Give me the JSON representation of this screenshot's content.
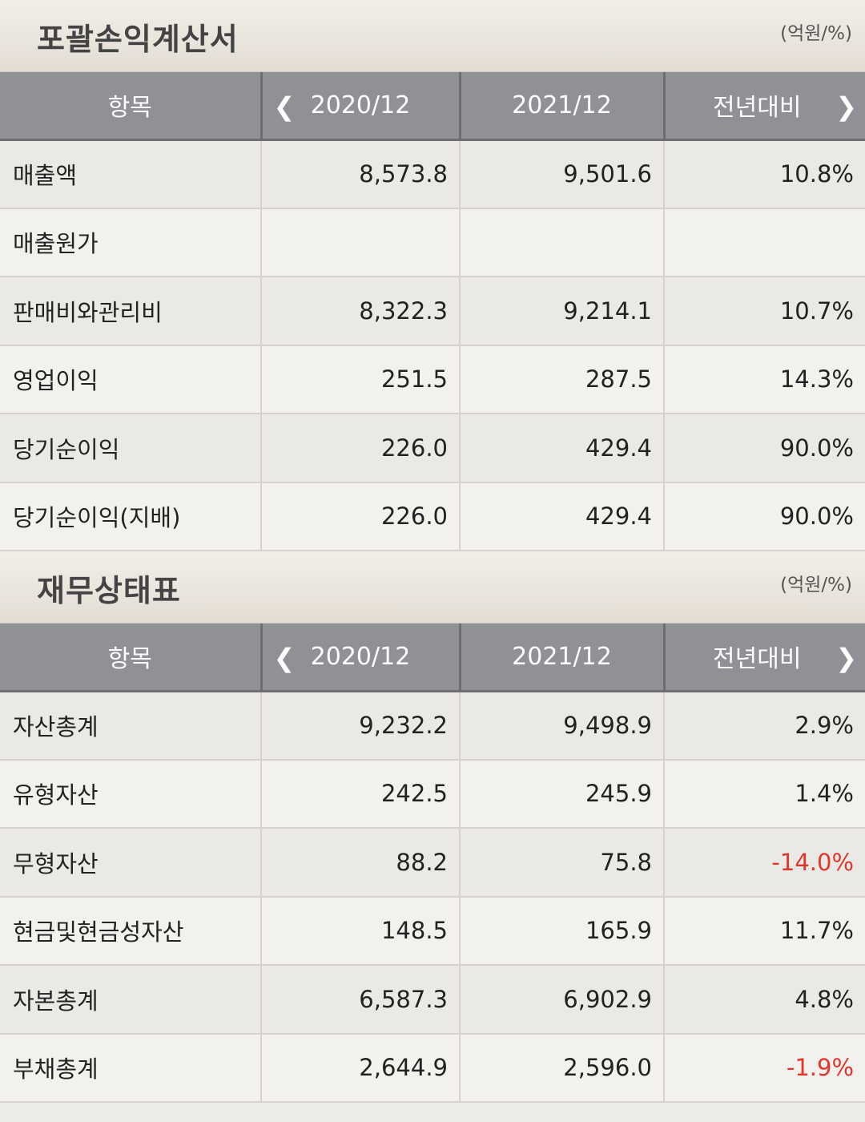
{
  "income": {
    "title": "포괄손익계산서",
    "unit": "(억원/%)",
    "headers": {
      "item": "항목",
      "y1": "2020/12",
      "y2": "2021/12",
      "yoy": "전년대비"
    },
    "rows": [
      {
        "label": "매출액",
        "y1": "8,573.8",
        "y2": "9,501.6",
        "yoy": "10.8%"
      },
      {
        "label": "매출원가",
        "y1": "",
        "y2": "",
        "yoy": ""
      },
      {
        "label": "판매비와관리비",
        "y1": "8,322.3",
        "y2": "9,214.1",
        "yoy": "10.7%"
      },
      {
        "label": "영업이익",
        "y1": "251.5",
        "y2": "287.5",
        "yoy": "14.3%"
      },
      {
        "label": "당기순이익",
        "y1": "226.0",
        "y2": "429.4",
        "yoy": "90.0%"
      },
      {
        "label": "당기순이익(지배)",
        "y1": "226.0",
        "y2": "429.4",
        "yoy": "90.0%"
      }
    ]
  },
  "balance": {
    "title": "재무상태표",
    "unit": "(억원/%)",
    "headers": {
      "item": "항목",
      "y1": "2020/12",
      "y2": "2021/12",
      "yoy": "전년대비"
    },
    "rows": [
      {
        "label": "자산총계",
        "y1": "9,232.2",
        "y2": "9,498.9",
        "yoy": "2.9%"
      },
      {
        "label": "유형자산",
        "y1": "242.5",
        "y2": "245.9",
        "yoy": "1.4%"
      },
      {
        "label": "무형자산",
        "y1": "88.2",
        "y2": "75.8",
        "yoy": "-14.0%"
      },
      {
        "label": "현금및현금성자산",
        "y1": "148.5",
        "y2": "165.9",
        "yoy": "11.7%"
      },
      {
        "label": "자본총계",
        "y1": "6,587.3",
        "y2": "6,902.9",
        "yoy": "4.8%"
      },
      {
        "label": "부채총계",
        "y1": "2,644.9",
        "y2": "2,596.0",
        "yoy": "-1.9%"
      }
    ]
  },
  "icons": {
    "prev": "chevron-left-icon",
    "next": "chevron-right-icon"
  },
  "colors": {
    "negative": "#e0362c",
    "header_bg": "#8f9196"
  }
}
